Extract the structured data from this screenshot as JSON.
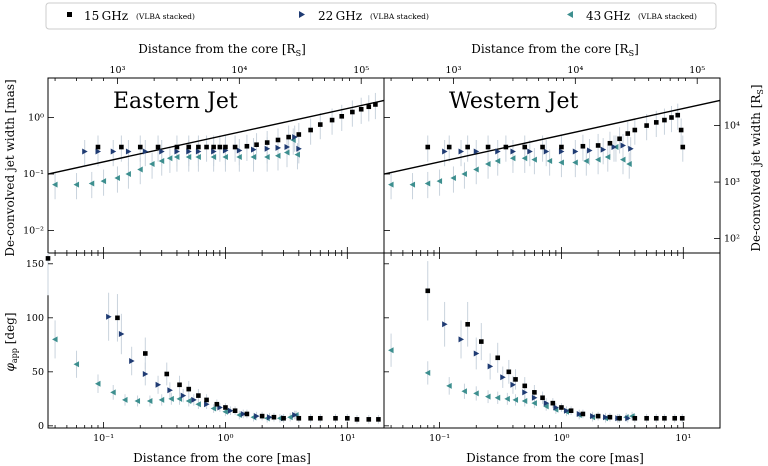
{
  "legend": {
    "series": [
      {
        "label": "15 GHz",
        "sub": "(VLBA stacked)"
      },
      {
        "label": "22 GHz",
        "sub": "(VLBA stacked)"
      },
      {
        "label": "43 GHz",
        "sub": "(VLBA stacked)"
      }
    ]
  },
  "labels": {
    "top_axis": "Distance from the core [R",
    "top_axis_sub": "S",
    "top_axis_end": "]",
    "bottom_axis": "Distance from the core [mas]",
    "left_top_axis": "De-convolved jet width [mas]",
    "right_top_axis": "De-convolved jet width [R",
    "right_top_axis_sub": "S",
    "right_top_axis_end": "]",
    "left_bottom_axis": "φ",
    "left_bottom_axis_sub": "app",
    "left_bottom_axis_end": " [deg]",
    "east_title": "Eastern Jet",
    "west_title": "Western Jet"
  },
  "colors": {
    "s15": "#000000",
    "s22": "#1f3b73",
    "s43": "#3d8f8f",
    "fit": "#000000",
    "errbar": "#c9d3dd"
  },
  "chart_data": {
    "type": "scatter",
    "panels": [
      "Eastern Jet",
      "Western Jet"
    ],
    "x_scale": "log",
    "xlim": [
      0.035,
      20
    ],
    "xlim_west": [
      0.035,
      20
    ],
    "xticks_bottom": [
      "10⁻¹",
      "10⁰",
      "10¹"
    ],
    "xticks_top": [
      "10³",
      "10⁴",
      "10⁵"
    ],
    "top_width": {
      "ylabel": "De-convolved jet width [mas]",
      "y_scale": "log",
      "ylim": [
        0.004,
        5
      ],
      "yticks_left": [
        "10⁻²",
        "10⁻¹",
        "10⁰"
      ],
      "yticks_right": [
        "10²",
        "10³",
        "10⁴"
      ],
      "east": {
        "s15": [
          [
            0.09,
            0.3
          ],
          [
            0.14,
            0.3
          ],
          [
            0.2,
            0.3
          ],
          [
            0.28,
            0.3
          ],
          [
            0.4,
            0.3
          ],
          [
            0.5,
            0.3
          ],
          [
            0.6,
            0.3
          ],
          [
            0.7,
            0.3
          ],
          [
            0.8,
            0.3
          ],
          [
            0.9,
            0.3
          ],
          [
            1.0,
            0.3
          ],
          [
            1.2,
            0.3
          ],
          [
            1.5,
            0.31
          ],
          [
            1.8,
            0.33
          ],
          [
            2.2,
            0.36
          ],
          [
            2.7,
            0.4
          ],
          [
            3.3,
            0.45
          ],
          [
            4.0,
            0.5
          ],
          [
            5.0,
            0.6
          ],
          [
            6.0,
            0.75
          ],
          [
            7.5,
            0.9
          ],
          [
            9.0,
            1.05
          ],
          [
            11.0,
            1.25
          ],
          [
            13.0,
            1.4
          ],
          [
            15.0,
            1.55
          ],
          [
            17.0,
            1.7
          ]
        ],
        "s22": [
          [
            0.07,
            0.25
          ],
          [
            0.09,
            0.25
          ],
          [
            0.12,
            0.25
          ],
          [
            0.16,
            0.25
          ],
          [
            0.22,
            0.25
          ],
          [
            0.3,
            0.25
          ],
          [
            0.4,
            0.25
          ],
          [
            0.5,
            0.25
          ],
          [
            0.6,
            0.25
          ],
          [
            0.8,
            0.25
          ],
          [
            1.0,
            0.26
          ],
          [
            1.3,
            0.26
          ],
          [
            1.7,
            0.27
          ],
          [
            2.2,
            0.28
          ],
          [
            2.7,
            0.29
          ],
          [
            3.2,
            0.3
          ],
          [
            3.7,
            0.45
          ],
          [
            4.0,
            0.28
          ]
        ],
        "s43": [
          [
            0.04,
            0.065
          ],
          [
            0.06,
            0.065
          ],
          [
            0.08,
            0.068
          ],
          [
            0.1,
            0.075
          ],
          [
            0.13,
            0.085
          ],
          [
            0.16,
            0.1
          ],
          [
            0.2,
            0.12
          ],
          [
            0.25,
            0.15
          ],
          [
            0.3,
            0.17
          ],
          [
            0.35,
            0.19
          ],
          [
            0.4,
            0.2
          ],
          [
            0.5,
            0.2
          ],
          [
            0.6,
            0.2
          ],
          [
            0.8,
            0.2
          ],
          [
            1.0,
            0.2
          ],
          [
            1.3,
            0.2
          ],
          [
            1.7,
            0.2
          ],
          [
            2.2,
            0.2
          ],
          [
            2.7,
            0.21
          ],
          [
            3.2,
            0.24
          ],
          [
            3.6,
            0.4
          ],
          [
            3.9,
            0.22
          ]
        ],
        "fit": [
          [
            0.035,
            0.1
          ],
          [
            20,
            2.0
          ]
        ]
      },
      "west": {
        "s15": [
          [
            0.08,
            0.3
          ],
          [
            0.12,
            0.3
          ],
          [
            0.17,
            0.3
          ],
          [
            0.25,
            0.3
          ],
          [
            0.35,
            0.3
          ],
          [
            0.5,
            0.3
          ],
          [
            0.7,
            0.3
          ],
          [
            1.0,
            0.3
          ],
          [
            1.5,
            0.31
          ],
          [
            2.0,
            0.32
          ],
          [
            2.5,
            0.35
          ],
          [
            3.0,
            0.42
          ],
          [
            3.5,
            0.52
          ],
          [
            4.0,
            0.6
          ],
          [
            5.0,
            0.72
          ],
          [
            6.0,
            0.82
          ],
          [
            7.0,
            0.9
          ],
          [
            8.0,
            1.0
          ],
          [
            9.0,
            1.1
          ],
          [
            9.6,
            0.6
          ],
          [
            9.9,
            0.3
          ]
        ],
        "s22": [
          [
            0.11,
            0.25
          ],
          [
            0.15,
            0.25
          ],
          [
            0.2,
            0.25
          ],
          [
            0.3,
            0.25
          ],
          [
            0.4,
            0.25
          ],
          [
            0.55,
            0.25
          ],
          [
            0.75,
            0.25
          ],
          [
            1.0,
            0.25
          ],
          [
            1.3,
            0.25
          ],
          [
            1.7,
            0.26
          ],
          [
            2.2,
            0.27
          ],
          [
            2.7,
            0.3
          ],
          [
            3.2,
            0.32
          ],
          [
            3.7,
            0.28
          ]
        ],
        "s43": [
          [
            0.04,
            0.065
          ],
          [
            0.06,
            0.065
          ],
          [
            0.08,
            0.068
          ],
          [
            0.1,
            0.075
          ],
          [
            0.13,
            0.085
          ],
          [
            0.16,
            0.1
          ],
          [
            0.2,
            0.12
          ],
          [
            0.25,
            0.15
          ],
          [
            0.3,
            0.17
          ],
          [
            0.4,
            0.19
          ],
          [
            0.5,
            0.19
          ],
          [
            0.6,
            0.18
          ],
          [
            0.8,
            0.17
          ],
          [
            1.0,
            0.16
          ],
          [
            1.3,
            0.16
          ],
          [
            1.6,
            0.17
          ],
          [
            2.0,
            0.18
          ],
          [
            2.4,
            0.2
          ],
          [
            2.8,
            0.3
          ],
          [
            3.2,
            0.18
          ],
          [
            3.6,
            0.15
          ]
        ],
        "fit": [
          [
            0.035,
            0.1
          ],
          [
            20,
            2.0
          ]
        ]
      }
    },
    "bottom_phi": {
      "ylabel": "φapp [deg]",
      "y_scale": "linear",
      "ylim": [
        -2,
        160
      ],
      "yticks": [
        0,
        50,
        100,
        150
      ],
      "east": {
        "s15": [
          [
            0.035,
            155
          ],
          [
            0.13,
            100
          ],
          [
            0.22,
            67
          ],
          [
            0.33,
            48
          ],
          [
            0.42,
            38
          ],
          [
            0.5,
            34
          ],
          [
            0.6,
            28
          ],
          [
            0.7,
            24
          ],
          [
            0.85,
            20
          ],
          [
            1.0,
            17
          ],
          [
            1.2,
            14
          ],
          [
            1.5,
            11
          ],
          [
            2.0,
            9
          ],
          [
            2.5,
            8
          ],
          [
            3.0,
            7
          ],
          [
            4.0,
            7
          ],
          [
            5.0,
            7
          ],
          [
            6.0,
            7
          ],
          [
            8.0,
            7
          ],
          [
            10.0,
            7
          ],
          [
            12.0,
            6
          ],
          [
            15.0,
            6
          ],
          [
            18.0,
            6
          ]
        ],
        "s22": [
          [
            0.11,
            101
          ],
          [
            0.14,
            85
          ],
          [
            0.17,
            60
          ],
          [
            0.22,
            48
          ],
          [
            0.28,
            38
          ],
          [
            0.35,
            33
          ],
          [
            0.45,
            28
          ],
          [
            0.55,
            24
          ],
          [
            0.7,
            20
          ],
          [
            0.9,
            17
          ],
          [
            1.1,
            14
          ],
          [
            1.4,
            11
          ],
          [
            1.8,
            9
          ],
          [
            2.3,
            8
          ],
          [
            3.0,
            7
          ],
          [
            3.7,
            10
          ]
        ],
        "s43": [
          [
            0.04,
            80
          ],
          [
            0.06,
            57
          ],
          [
            0.09,
            39
          ],
          [
            0.12,
            31
          ],
          [
            0.15,
            24
          ],
          [
            0.19,
            23
          ],
          [
            0.24,
            23
          ],
          [
            0.3,
            24
          ],
          [
            0.36,
            25
          ],
          [
            0.42,
            25
          ],
          [
            0.5,
            23
          ],
          [
            0.6,
            20
          ],
          [
            0.8,
            16
          ],
          [
            1.0,
            13
          ],
          [
            1.3,
            10
          ],
          [
            1.7,
            8
          ],
          [
            2.2,
            7
          ],
          [
            2.8,
            7
          ],
          [
            3.4,
            8
          ],
          [
            3.8,
            10
          ]
        ]
      },
      "west": {
        "s15": [
          [
            0.08,
            125
          ],
          [
            0.17,
            94
          ],
          [
            0.22,
            78
          ],
          [
            0.3,
            63
          ],
          [
            0.37,
            50
          ],
          [
            0.42,
            43
          ],
          [
            0.5,
            37
          ],
          [
            0.6,
            31
          ],
          [
            0.7,
            26
          ],
          [
            0.85,
            21
          ],
          [
            1.0,
            17
          ],
          [
            1.2,
            14
          ],
          [
            1.5,
            11
          ],
          [
            2.0,
            9
          ],
          [
            2.5,
            8
          ],
          [
            3.0,
            7
          ],
          [
            4.0,
            7
          ],
          [
            5.0,
            7
          ],
          [
            6.0,
            7
          ],
          [
            7.0,
            7
          ],
          [
            8.5,
            7
          ],
          [
            9.8,
            7
          ]
        ],
        "s22": [
          [
            0.11,
            94
          ],
          [
            0.15,
            80
          ],
          [
            0.2,
            67
          ],
          [
            0.26,
            55
          ],
          [
            0.33,
            45
          ],
          [
            0.4,
            38
          ],
          [
            0.5,
            31
          ],
          [
            0.6,
            26
          ],
          [
            0.75,
            21
          ],
          [
            0.9,
            17
          ],
          [
            1.1,
            14
          ],
          [
            1.4,
            11
          ],
          [
            1.8,
            9
          ],
          [
            2.3,
            8
          ],
          [
            2.9,
            7
          ],
          [
            3.5,
            7
          ]
        ],
        "s43": [
          [
            0.04,
            70
          ],
          [
            0.08,
            49
          ],
          [
            0.12,
            37
          ],
          [
            0.16,
            32
          ],
          [
            0.2,
            30
          ],
          [
            0.25,
            27
          ],
          [
            0.3,
            26
          ],
          [
            0.36,
            25
          ],
          [
            0.42,
            24
          ],
          [
            0.5,
            23
          ],
          [
            0.6,
            21
          ],
          [
            0.75,
            18
          ],
          [
            0.9,
            15
          ],
          [
            1.1,
            13
          ],
          [
            1.4,
            10
          ],
          [
            1.8,
            8
          ],
          [
            2.3,
            7
          ],
          [
            2.9,
            7
          ],
          [
            3.4,
            8
          ],
          [
            3.8,
            9
          ]
        ]
      }
    }
  }
}
